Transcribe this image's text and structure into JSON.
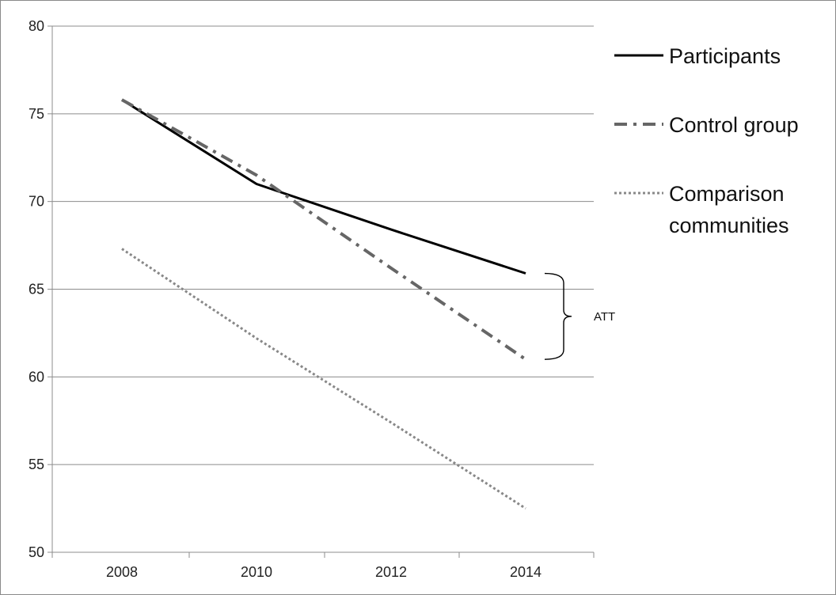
{
  "chart_data": {
    "type": "line",
    "x": [
      "2008",
      "2010",
      "2012",
      "2014"
    ],
    "ylim": [
      50,
      80
    ],
    "yticks": [
      "50",
      "55",
      "60",
      "65",
      "70",
      "75",
      "80"
    ],
    "grid": "horizontal",
    "legend": "right",
    "series": [
      {
        "name": "Participants",
        "values": [
          75.8,
          71.0,
          68.4,
          65.9
        ],
        "style": "solid",
        "color": "#000000"
      },
      {
        "name": "Control group",
        "values": [
          75.8,
          71.5,
          66.2,
          61.0
        ],
        "style": "dash-dot",
        "color": "#666666"
      },
      {
        "name": "Comparison communities",
        "values": [
          67.3,
          62.2,
          57.4,
          52.5
        ],
        "style": "dotted",
        "color": "#888888"
      }
    ],
    "legend_labels": [
      [
        "Participants"
      ],
      [
        "Control group"
      ],
      [
        "Comparison",
        "communities"
      ]
    ],
    "annotation": {
      "text": "ATT",
      "x": "2014",
      "from": 61.0,
      "to": 65.9
    }
  }
}
